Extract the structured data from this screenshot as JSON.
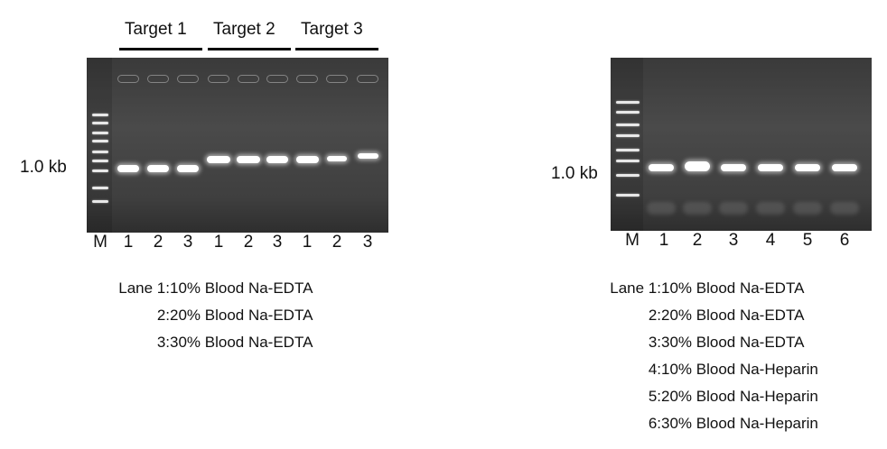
{
  "left_panel": {
    "targets": [
      "Target 1",
      "Target 2",
      "Target 3"
    ],
    "size_marker": "1.0 kb",
    "lane_labels": [
      "M",
      "1",
      "2",
      "3",
      "1",
      "2",
      "3",
      "1",
      "2",
      "3"
    ],
    "legend": [
      {
        "prefix": "Lane 1:",
        "text": "10% Blood Na-EDTA"
      },
      {
        "prefix": "2:",
        "text": "20% Blood Na-EDTA"
      },
      {
        "prefix": "3:",
        "text": "30% Blood Na-EDTA"
      }
    ]
  },
  "right_panel": {
    "size_marker": "1.0 kb",
    "lane_labels": [
      "M",
      "1",
      "2",
      "3",
      "4",
      "5",
      "6"
    ],
    "legend": [
      {
        "prefix": "Lane 1:",
        "text": "10% Blood Na-EDTA"
      },
      {
        "prefix": "2:",
        "text": "20% Blood Na-EDTA"
      },
      {
        "prefix": "3:",
        "text": "30% Blood Na-EDTA"
      },
      {
        "prefix": "4:",
        "text": "10% Blood Na-Heparin"
      },
      {
        "prefix": "5:",
        "text": "20% Blood Na-Heparin"
      },
      {
        "prefix": "6:",
        "text": "30% Blood Na-Heparin"
      }
    ]
  }
}
